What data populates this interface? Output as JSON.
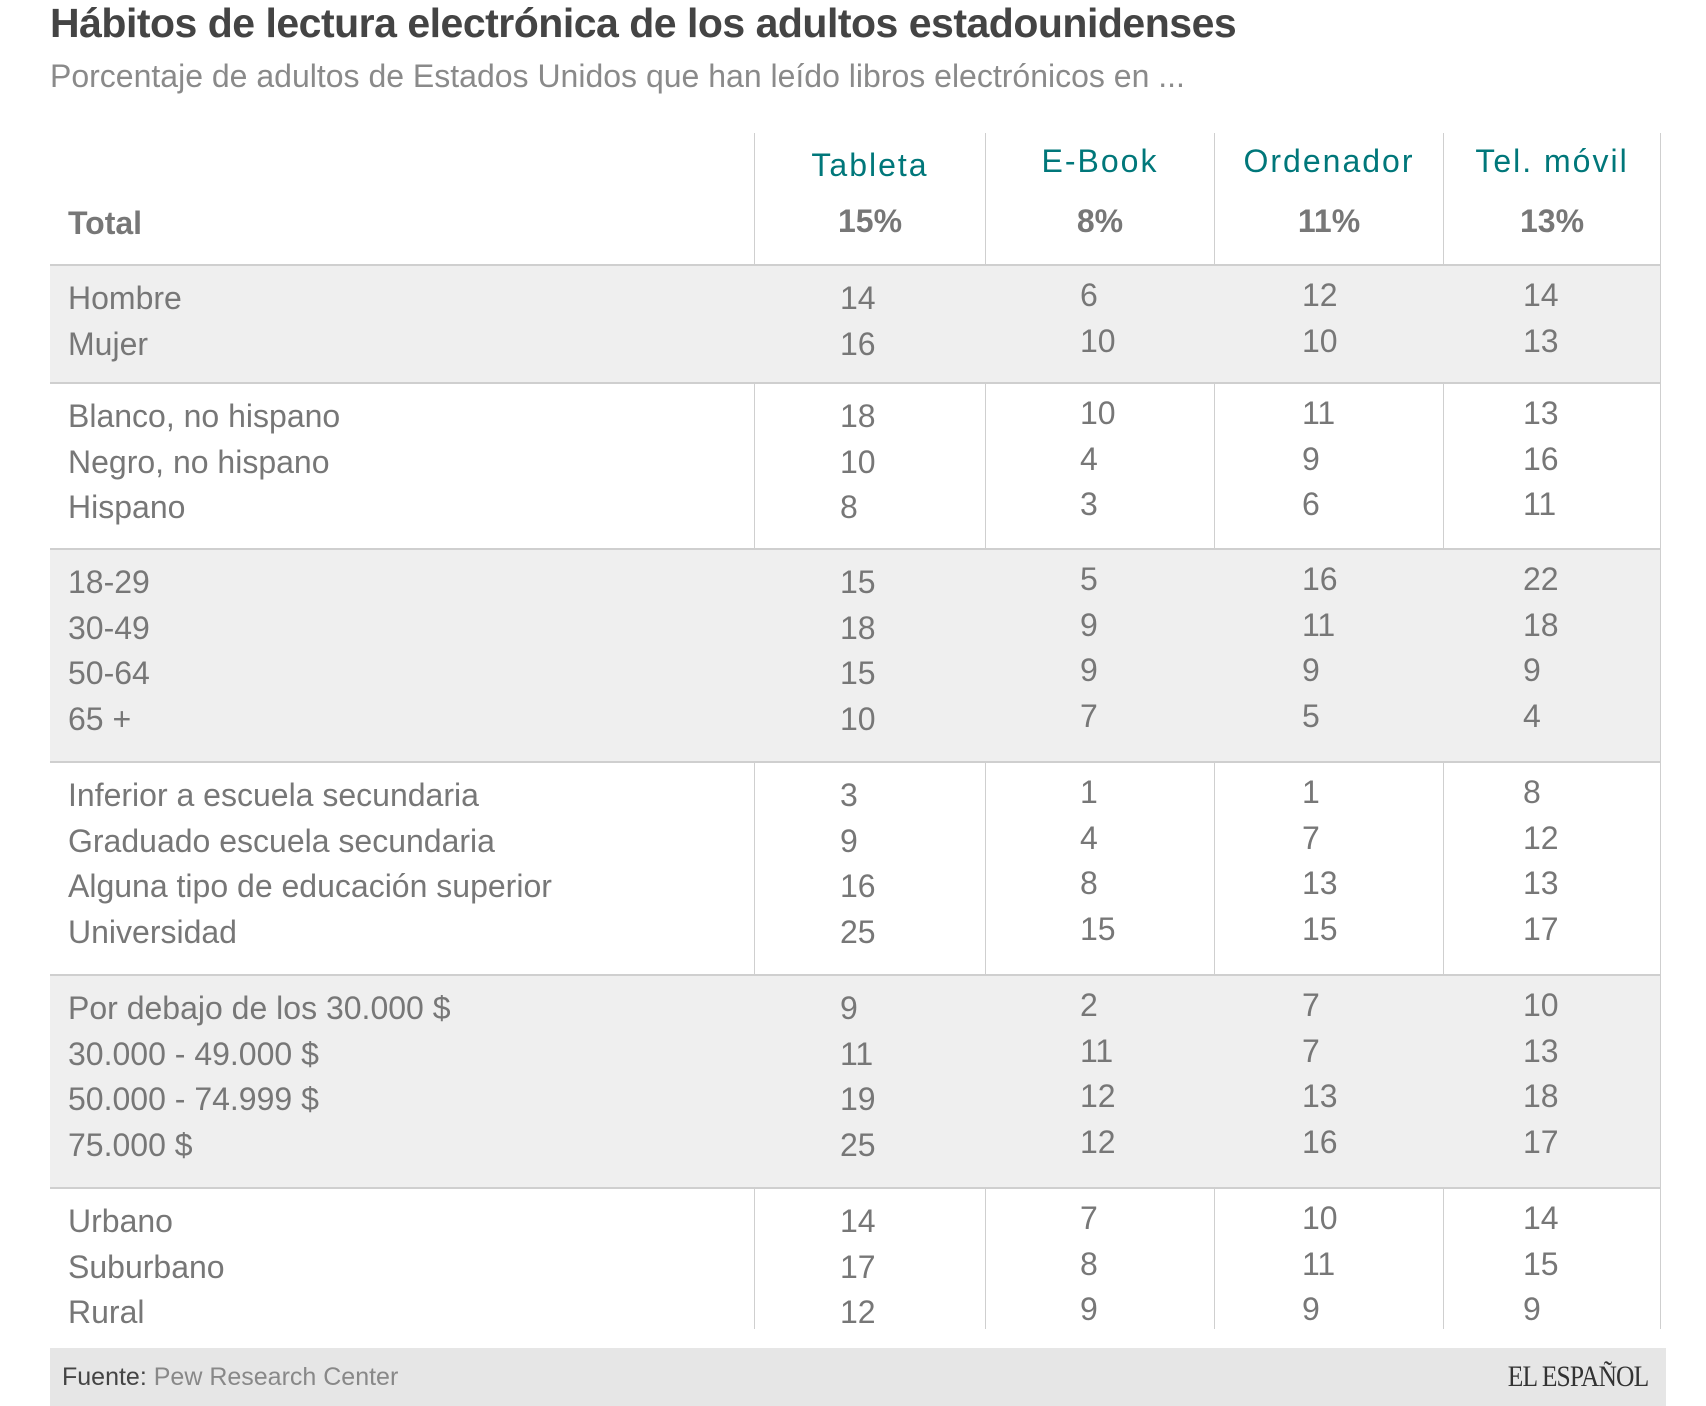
{
  "title": "Hábitos de lectura electrónica de los adultos estadounidenses",
  "subtitle": "Porcentaje de adultos de Estados Unidos que han leído libros electrónicos en ...",
  "footer": {
    "source_label": "Fuente:",
    "source": "Pew Research Center",
    "logo": "EL ESPAÑOL"
  },
  "chart_data": {
    "type": "table",
    "columns": [
      "Tableta",
      "E-Book",
      "Ordenador",
      "Tel. móvil"
    ],
    "total": {
      "label": "Total",
      "values": [
        "15%",
        "8%",
        "11%",
        "13%"
      ]
    },
    "groups": [
      {
        "rows": [
          {
            "label": "Hombre",
            "values": [
              14,
              6,
              12,
              14
            ]
          },
          {
            "label": "Mujer",
            "values": [
              16,
              10,
              10,
              13
            ]
          }
        ]
      },
      {
        "rows": [
          {
            "label": "Blanco, no hispano",
            "values": [
              18,
              10,
              11,
              13
            ]
          },
          {
            "label": "Negro, no hispano",
            "values": [
              10,
              4,
              9,
              16
            ]
          },
          {
            "label": "Hispano",
            "values": [
              8,
              3,
              6,
              11
            ]
          }
        ]
      },
      {
        "rows": [
          {
            "label": "18-29",
            "values": [
              15,
              5,
              16,
              22
            ]
          },
          {
            "label": "30-49",
            "values": [
              18,
              9,
              11,
              18
            ]
          },
          {
            "label": "50-64",
            "values": [
              15,
              9,
              9,
              9
            ]
          },
          {
            "label": "65 +",
            "values": [
              10,
              7,
              5,
              4
            ]
          }
        ]
      },
      {
        "rows": [
          {
            "label": "Inferior a escuela secundaria",
            "values": [
              3,
              1,
              1,
              8
            ]
          },
          {
            "label": "Graduado escuela secundaria",
            "values": [
              9,
              4,
              7,
              12
            ]
          },
          {
            "label": "Alguna tipo de educación superior",
            "values": [
              16,
              8,
              13,
              13
            ]
          },
          {
            "label": "Universidad",
            "values": [
              25,
              15,
              15,
              17
            ]
          }
        ]
      },
      {
        "rows": [
          {
            "label": "Por debajo de los 30.000 $",
            "values": [
              9,
              2,
              7,
              10
            ]
          },
          {
            "label": "30.000 - 49.000 $",
            "values": [
              11,
              11,
              7,
              13
            ]
          },
          {
            "label": "50.000 - 74.999 $",
            "values": [
              19,
              12,
              13,
              18
            ]
          },
          {
            "label": "75.000 $",
            "values": [
              25,
              12,
              16,
              17
            ]
          }
        ]
      },
      {
        "rows": [
          {
            "label": "Urbano",
            "values": [
              14,
              7,
              10,
              14
            ]
          },
          {
            "label": "Suburbano",
            "values": [
              17,
              8,
              11,
              15
            ]
          },
          {
            "label": "Rural",
            "values": [
              12,
              9,
              9,
              9
            ]
          }
        ]
      }
    ]
  },
  "colors": {
    "header": "#00777a",
    "text": "#777777",
    "title": "#444444",
    "band": "#efefef"
  }
}
